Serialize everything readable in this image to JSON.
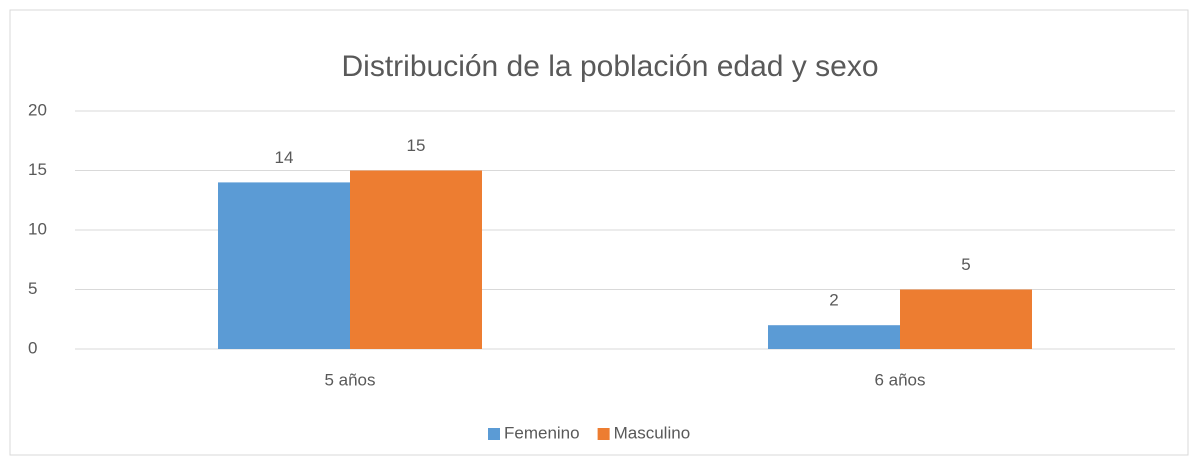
{
  "chart_data": {
    "type": "bar",
    "title": "Distribución de la población edad  y sexo",
    "categories": [
      "5 años",
      "6 años"
    ],
    "series": [
      {
        "name": "Femenino",
        "color": "#5b9bd5",
        "values": [
          14,
          2
        ]
      },
      {
        "name": "Masculino",
        "color": "#ed7d31",
        "values": [
          15,
          5
        ]
      }
    ],
    "ylim": [
      0,
      20
    ],
    "yticks": [
      0,
      5,
      10,
      15,
      20
    ],
    "grid": true,
    "legend": "bottom"
  }
}
